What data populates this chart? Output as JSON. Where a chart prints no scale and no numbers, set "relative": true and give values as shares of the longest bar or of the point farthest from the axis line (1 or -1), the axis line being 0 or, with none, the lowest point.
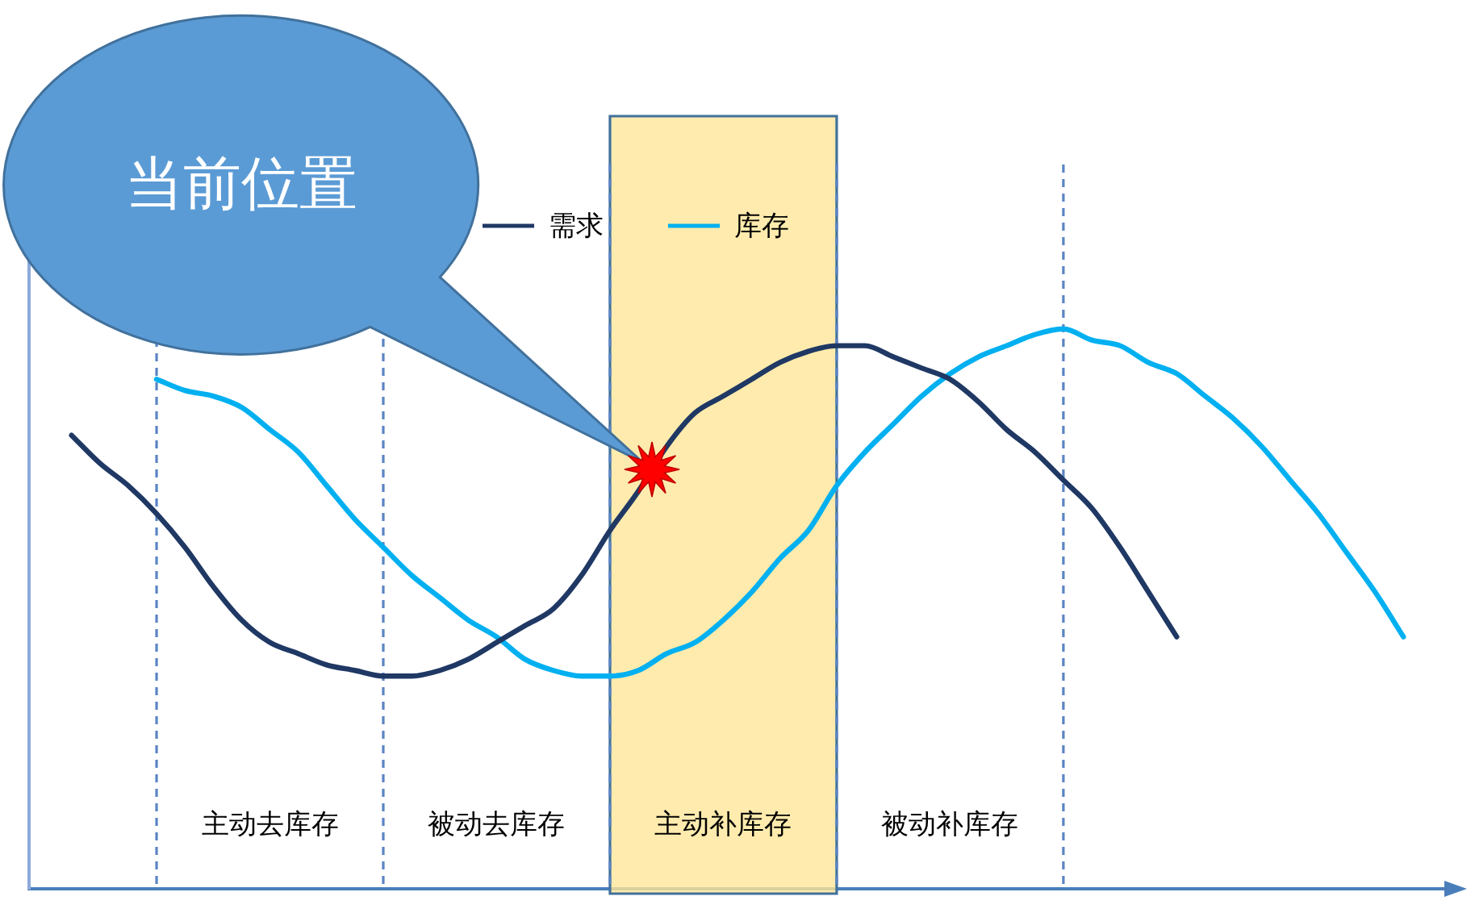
{
  "chart_data": {
    "type": "line",
    "relative": true,
    "categories": [
      null,
      null,
      null,
      null,
      null,
      null,
      null,
      null,
      "主动去库存",
      null,
      null,
      null,
      null,
      null,
      null,
      null,
      "被动去库存",
      null,
      null,
      null,
      null,
      null,
      null,
      null,
      "主动补库存",
      null,
      null,
      null,
      null,
      null,
      null,
      null,
      "被动补库存",
      null,
      null,
      null,
      null,
      null,
      null,
      null,
      null,
      null,
      null,
      null,
      null,
      null,
      null,
      null,
      null,
      null
    ],
    "tick_labels": "x",
    "grid": "x",
    "legend": "top",
    "series": [
      {
        "name": "需求",
        "color": "#1f3864",
        "values": [
          null,
          0.81,
          0.76,
          0.72,
          0.67,
          0.61,
          0.54,
          0.48,
          0.44,
          0.42,
          0.4,
          0.39,
          0.38,
          0.38,
          0.39,
          0.41,
          0.44,
          0.47,
          0.5,
          0.56,
          0.64,
          0.71,
          0.79,
          0.85,
          0.88,
          0.91,
          0.94,
          0.96,
          0.97,
          0.97,
          0.95,
          0.93,
          0.91,
          0.87,
          0.82,
          0.78,
          0.73,
          0.68,
          0.61,
          0.53,
          0.45,
          null,
          null,
          null,
          null,
          null,
          null,
          null,
          null,
          null
        ]
      },
      {
        "name": "库存",
        "color": "#00b0f0",
        "values": [
          null,
          null,
          null,
          null,
          0.91,
          0.89,
          0.88,
          0.86,
          0.82,
          0.78,
          0.72,
          0.66,
          0.61,
          0.56,
          0.52,
          0.48,
          0.45,
          0.41,
          0.39,
          0.38,
          0.38,
          0.39,
          0.42,
          0.44,
          0.48,
          0.53,
          0.59,
          0.64,
          0.72,
          0.78,
          0.83,
          0.88,
          0.92,
          0.95,
          0.97,
          0.99,
          1.0,
          0.98,
          0.97,
          0.94,
          0.92,
          0.88,
          0.84,
          0.79,
          0.73,
          0.67,
          0.6,
          0.53,
          0.45,
          null
        ]
      }
    ],
    "annotations": [
      "当前位置"
    ]
  }
}
